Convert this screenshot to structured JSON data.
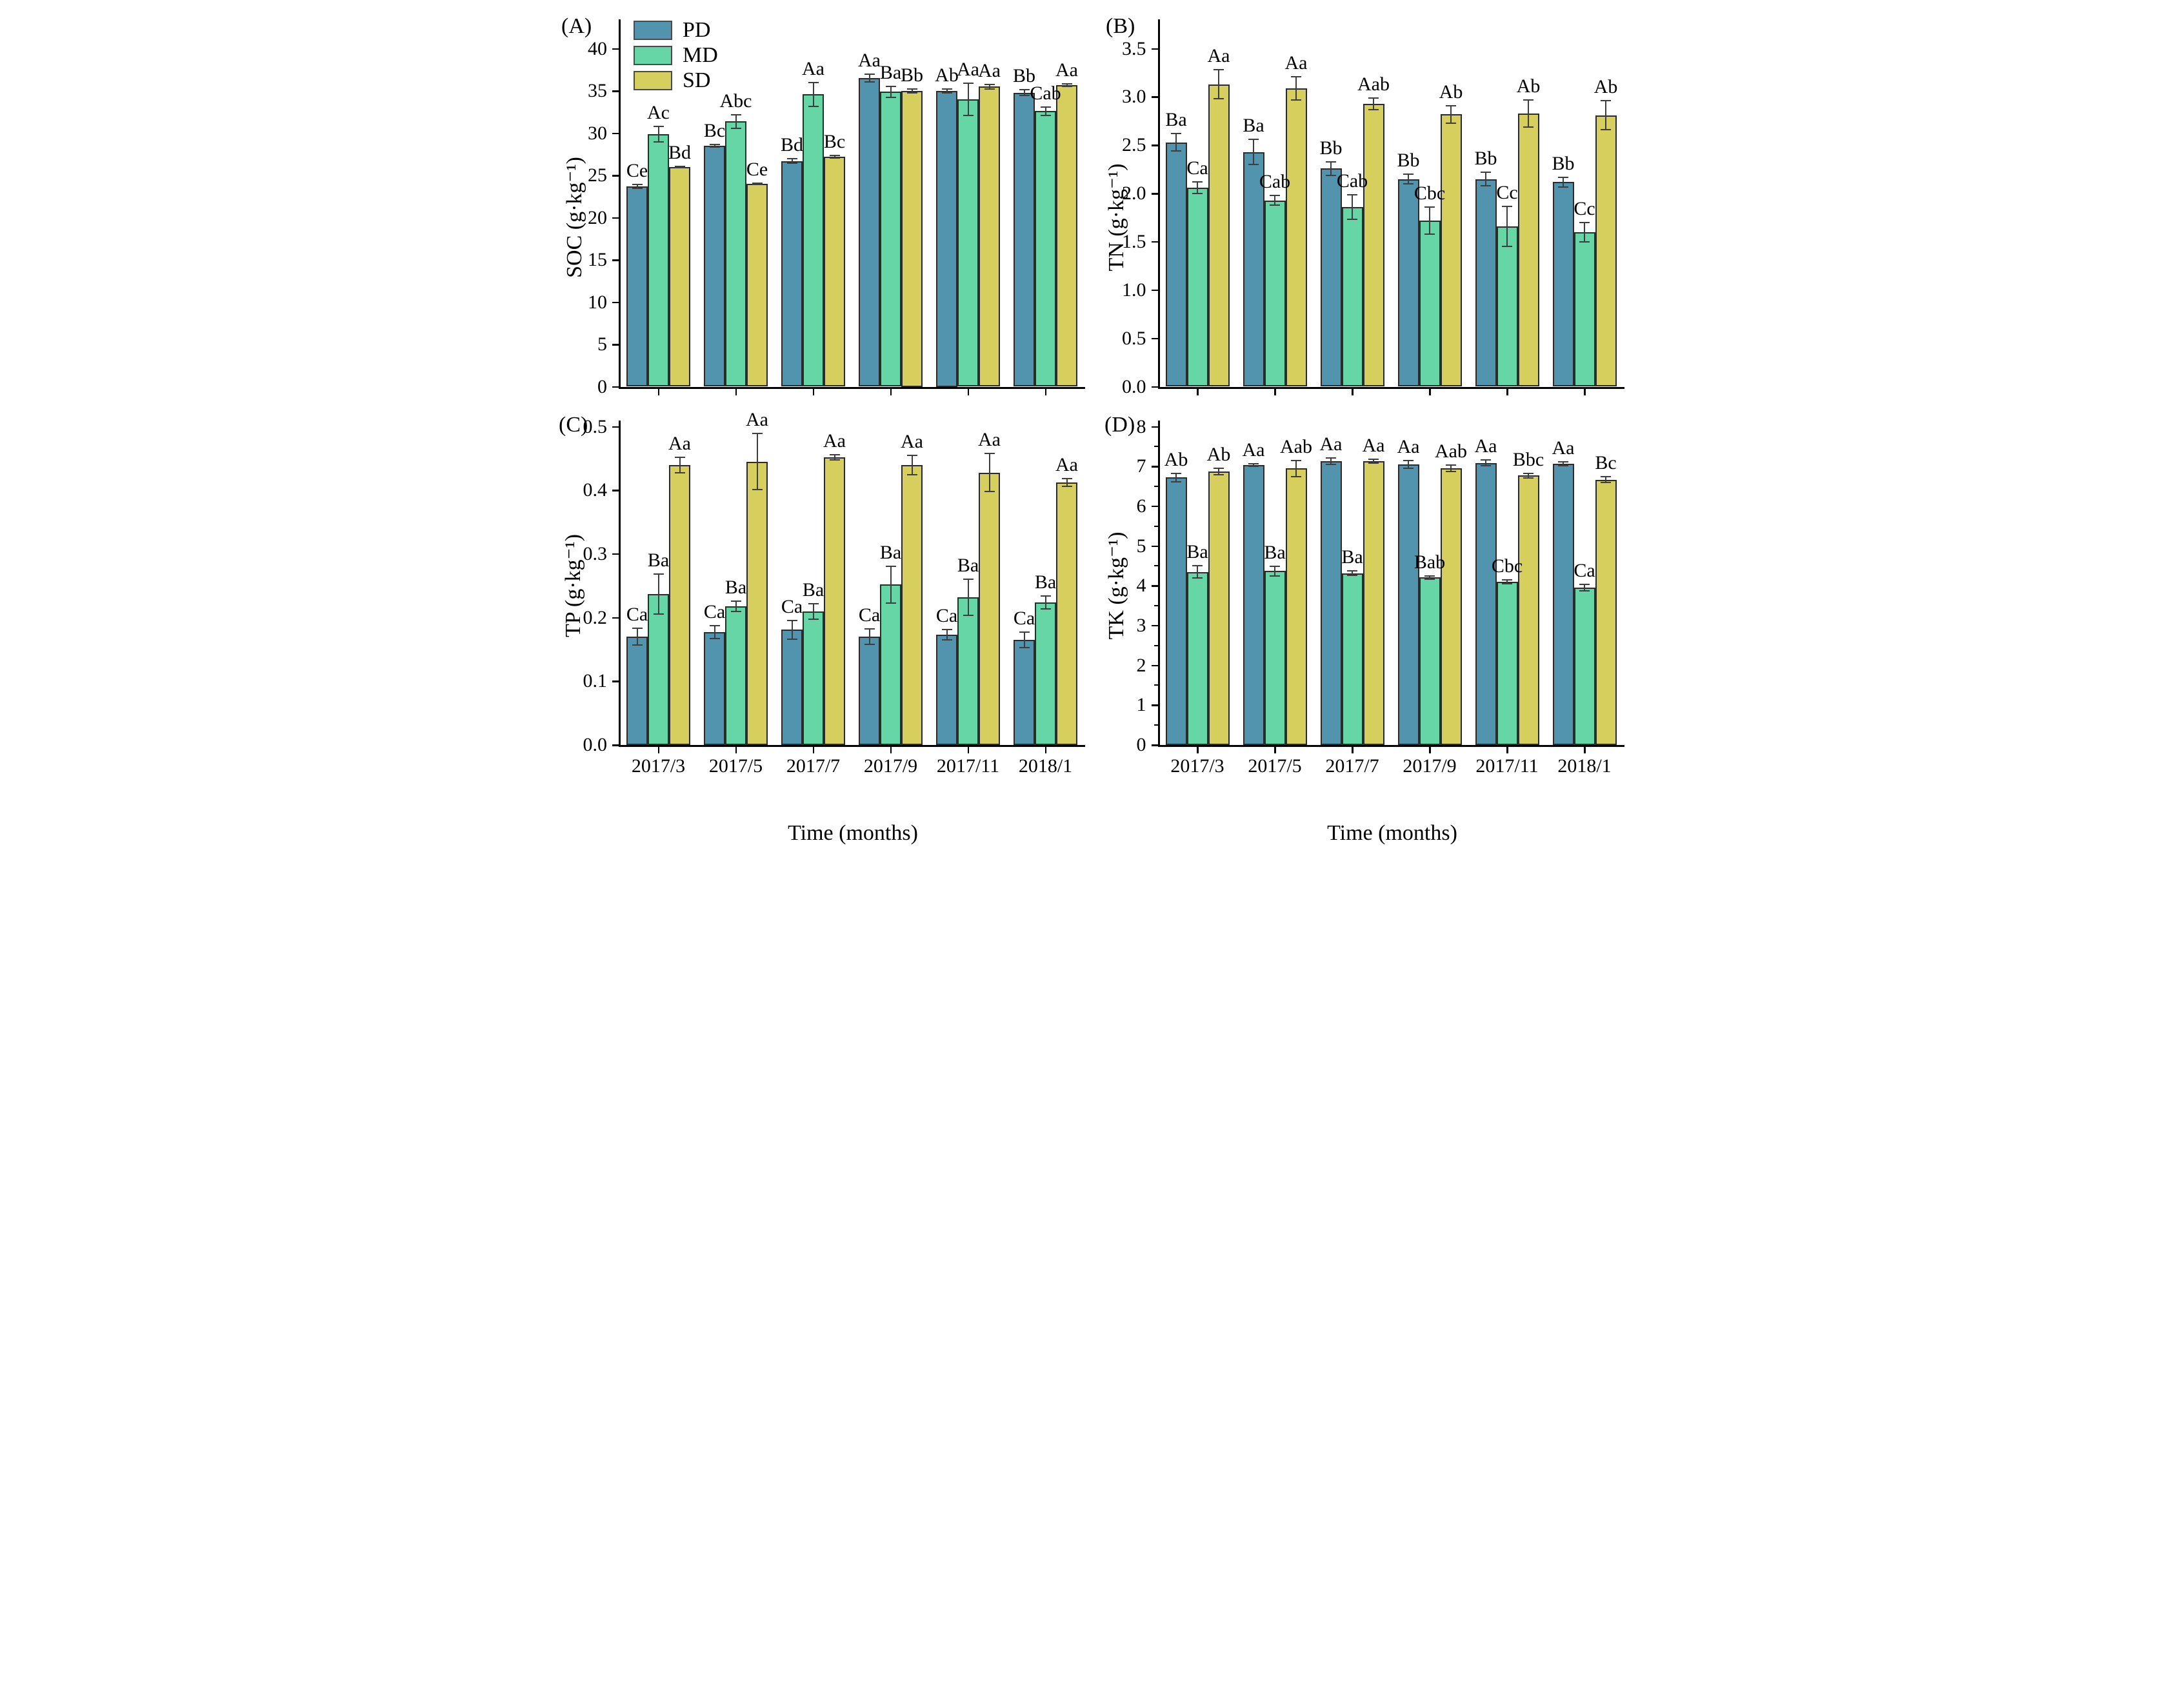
{
  "figure": {
    "x_title": "Time (months)",
    "x_categories": [
      "2017/3",
      "2017/5",
      "2017/7",
      "2017/9",
      "2017/11",
      "2018/1"
    ],
    "legend": [
      {
        "label": "PD",
        "color": "#5294ae"
      },
      {
        "label": "MD",
        "color": "#66d6a6"
      },
      {
        "label": "SD",
        "color": "#d6cf5e"
      }
    ],
    "colors": {
      "pd_fill": "#5294ae",
      "md_fill": "#66d6a6",
      "sd_fill": "#d6cf5e",
      "bar_edge": "#2b2b2b",
      "error_bar": "#3d3d3d",
      "axis": "#000000",
      "background": "#ffffff",
      "text": "#000000"
    }
  },
  "chart_data": [
    {
      "panel_label": "(A)",
      "type": "bar",
      "ylabel": "SOC (g·kg⁻¹)",
      "ylim": [
        0,
        40
      ],
      "ytick_step": 5,
      "ytick_decimals": 0,
      "minor_ticks": false,
      "show_x_labels": false,
      "legend_position": "top-left",
      "grid": false,
      "series": [
        {
          "name": "PD",
          "values": [
            23.7,
            28.5,
            26.7,
            36.5,
            35.0,
            34.8
          ],
          "errors": [
            0.2,
            0.15,
            0.25,
            0.45,
            0.2,
            0.35
          ],
          "sig_letters": [
            "Ce",
            "Bc",
            "Bd",
            "Aa",
            "Ab",
            "Bb"
          ]
        },
        {
          "name": "MD",
          "values": [
            29.9,
            31.4,
            34.6,
            34.9,
            34.0,
            32.6
          ],
          "errors": [
            0.9,
            0.8,
            1.4,
            0.65,
            1.9,
            0.5
          ],
          "sig_letters": [
            "Ac",
            "Abc",
            "Aa",
            "Ba",
            "Aa",
            "Cab"
          ]
        },
        {
          "name": "SD",
          "values": [
            26.0,
            24.0,
            27.2,
            35.0,
            35.5,
            35.7
          ],
          "errors": [
            0.1,
            0.1,
            0.15,
            0.2,
            0.25,
            0.15
          ],
          "sig_letters": [
            "Bd",
            "Ce",
            "Bc",
            "Bb",
            "Aa",
            "Aa"
          ]
        }
      ]
    },
    {
      "panel_label": "(B)",
      "type": "bar",
      "ylabel": "TN (g·kg⁻¹)",
      "ylim": [
        0,
        3.5
      ],
      "ytick_step": 0.5,
      "ytick_decimals": 1,
      "minor_ticks": false,
      "show_x_labels": false,
      "grid": false,
      "series": [
        {
          "name": "PD",
          "values": [
            2.53,
            2.43,
            2.26,
            2.15,
            2.15,
            2.12
          ],
          "errors": [
            0.09,
            0.13,
            0.07,
            0.05,
            0.07,
            0.05
          ],
          "sig_letters": [
            "Ba",
            "Ba",
            "Bb",
            "Bb",
            "Bb",
            "Bb"
          ]
        },
        {
          "name": "MD",
          "values": [
            2.06,
            1.93,
            1.86,
            1.72,
            1.66,
            1.6
          ],
          "errors": [
            0.06,
            0.05,
            0.13,
            0.14,
            0.21,
            0.1
          ],
          "sig_letters": [
            "Ca",
            "Cab",
            "Cab",
            "Cbc",
            "Cc",
            "Cc"
          ]
        },
        {
          "name": "SD",
          "values": [
            3.13,
            3.09,
            2.93,
            2.82,
            2.83,
            2.81
          ],
          "errors": [
            0.15,
            0.12,
            0.06,
            0.09,
            0.14,
            0.15
          ],
          "sig_letters": [
            "Aa",
            "Aa",
            "Aab",
            "Ab",
            "Ab",
            "Ab"
          ]
        }
      ]
    },
    {
      "panel_label": "(C)",
      "type": "bar",
      "ylabel": "TP (g·kg⁻¹)",
      "ylim": [
        0,
        0.5
      ],
      "ytick_step": 0.1,
      "ytick_decimals": 1,
      "minor_ticks": false,
      "show_x_labels": true,
      "grid": false,
      "series": [
        {
          "name": "PD",
          "values": [
            0.17,
            0.177,
            0.181,
            0.17,
            0.173,
            0.165
          ],
          "errors": [
            0.013,
            0.01,
            0.015,
            0.012,
            0.008,
            0.012
          ],
          "sig_letters": [
            "Ca",
            "Ca",
            "Ca",
            "Ca",
            "Ca",
            "Ca"
          ]
        },
        {
          "name": "MD",
          "values": [
            0.237,
            0.218,
            0.21,
            0.252,
            0.232,
            0.224
          ],
          "errors": [
            0.031,
            0.008,
            0.012,
            0.029,
            0.028,
            0.01
          ],
          "sig_letters": [
            "Ba",
            "Ba",
            "Ba",
            "Ba",
            "Ba",
            "Ba"
          ]
        },
        {
          "name": "SD",
          "values": [
            0.44,
            0.445,
            0.452,
            0.44,
            0.428,
            0.412
          ],
          "errors": [
            0.012,
            0.044,
            0.004,
            0.015,
            0.03,
            0.006
          ],
          "sig_letters": [
            "Aa",
            "Aa",
            "Aa",
            "Aa",
            "Aa",
            "Aa"
          ]
        }
      ]
    },
    {
      "panel_label": "(D)",
      "type": "bar",
      "ylabel": "TK (g·kg⁻¹)",
      "ylim": [
        0,
        8
      ],
      "ytick_step": 1,
      "ytick_decimals": 0,
      "minor_ticks": true,
      "show_x_labels": true,
      "grid": false,
      "series": [
        {
          "name": "PD",
          "values": [
            6.72,
            7.03,
            7.13,
            7.05,
            7.09,
            7.07
          ],
          "errors": [
            0.1,
            0.03,
            0.08,
            0.1,
            0.07,
            0.05
          ],
          "sig_letters": [
            "Ab",
            "Aa",
            "Aa",
            "Aa",
            "Aa",
            "Aa"
          ]
        },
        {
          "name": "MD",
          "values": [
            4.35,
            4.37,
            4.32,
            4.21,
            4.1,
            3.96
          ],
          "errors": [
            0.15,
            0.12,
            0.06,
            0.04,
            0.05,
            0.08
          ],
          "sig_letters": [
            "Ba",
            "Ba",
            "Ba",
            "Bab",
            "Cbc",
            "Ca"
          ]
        },
        {
          "name": "SD",
          "values": [
            6.88,
            6.95,
            7.13,
            6.95,
            6.77,
            6.67
          ],
          "errors": [
            0.08,
            0.2,
            0.05,
            0.08,
            0.06,
            0.07
          ],
          "sig_letters": [
            "Ab",
            "Aab",
            "Aa",
            "Aab",
            "Bbc",
            "Bc"
          ]
        }
      ]
    }
  ]
}
